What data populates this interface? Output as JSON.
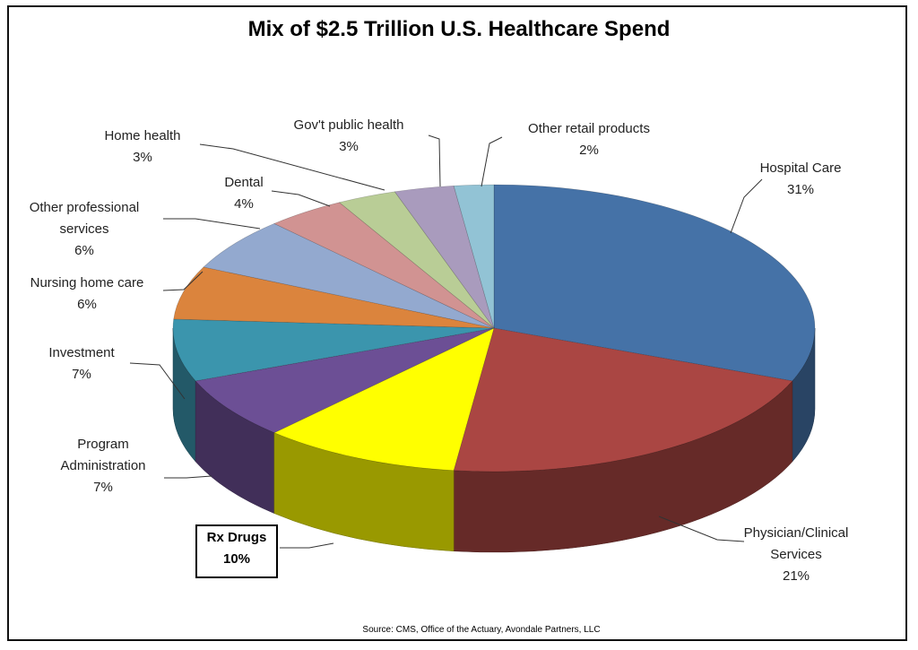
{
  "chart_data": {
    "type": "pie",
    "title": "Mix of $2.5 Trillion U.S. Healthcare Spend",
    "source": "Source: CMS, Office of the Actuary, Avondale Partners, LLC",
    "unit": "%",
    "slices": [
      {
        "name": "Hospital Care",
        "lines": [
          "Hospital Care"
        ],
        "value": 31,
        "label": "31%",
        "color": "#4572A7"
      },
      {
        "name": "Physician/Clinical Services",
        "lines": [
          "Physician/Clinical",
          "Services"
        ],
        "value": 21,
        "label": "21%",
        "color": "#AA4643"
      },
      {
        "name": "Rx Drugs",
        "lines": [
          "Rx Drugs"
        ],
        "value": 10,
        "label": "10%",
        "color": "#FFFF00",
        "highlight": true
      },
      {
        "name": "Program Administration",
        "lines": [
          "Program",
          "Administration"
        ],
        "value": 7,
        "label": "7%",
        "color": "#6C4F95"
      },
      {
        "name": "Investment",
        "lines": [
          "Investment"
        ],
        "value": 7,
        "label": "7%",
        "color": "#3B95AD"
      },
      {
        "name": "Nursing home care",
        "lines": [
          "Nursing home care"
        ],
        "value": 6,
        "label": "6%",
        "color": "#DB843D"
      },
      {
        "name": "Other professional services",
        "lines": [
          "Other professional",
          "services"
        ],
        "value": 6,
        "label": "6%",
        "color": "#93A9CF"
      },
      {
        "name": "Dental",
        "lines": [
          "Dental"
        ],
        "value": 4,
        "label": "4%",
        "color": "#D19392"
      },
      {
        "name": "Home health",
        "lines": [
          "Home health"
        ],
        "value": 3,
        "label": "3%",
        "color": "#B9CD96"
      },
      {
        "name": "Gov't public health",
        "lines": [
          "Gov't public health"
        ],
        "value": 3,
        "label": "3%",
        "color": "#A99BBD"
      },
      {
        "name": "Other retail products",
        "lines": [
          "Other retail products"
        ],
        "value": 2,
        "label": "2%",
        "color": "#92C3D5"
      }
    ]
  }
}
